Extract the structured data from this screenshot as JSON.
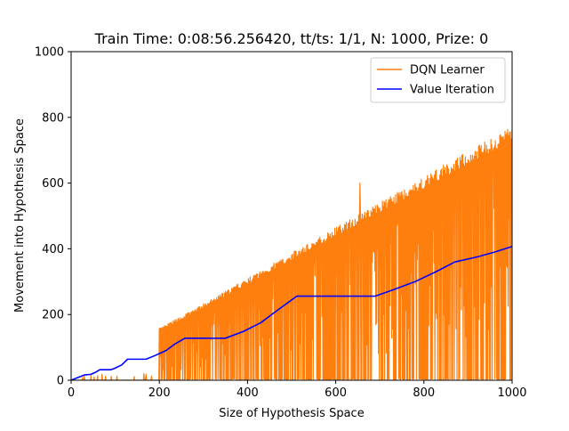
{
  "chart_data": {
    "type": "line",
    "title": "Train Time: 0:08:56.256420, tt/ts: 1/1, N: 1000, Prize: 0",
    "xlabel": "Size of Hypothesis Space",
    "ylabel": "Movement into Hypothesis Space",
    "xlim": [
      0,
      1000
    ],
    "ylim": [
      0,
      1000
    ],
    "xticks": [
      0,
      200,
      400,
      600,
      800,
      1000
    ],
    "yticks": [
      0,
      200,
      400,
      600,
      800,
      1000
    ],
    "grid": false,
    "legend_position": "top-right",
    "series": [
      {
        "name": "DQN Learner",
        "color": "#ff7f0e",
        "description_of_shape": "oscillating between ~0 and an upper envelope of about 0.77*x, with a sparse band between x=0 and 200",
        "upper_envelope": [
          [
            0,
            0
          ],
          [
            200,
            158
          ],
          [
            300,
            232
          ],
          [
            400,
            310
          ],
          [
            500,
            388
          ],
          [
            600,
            465
          ],
          [
            700,
            542
          ],
          [
            800,
            620
          ],
          [
            900,
            697
          ],
          [
            1000,
            775
          ]
        ],
        "spikes": [
          [
            30,
            12
          ],
          [
            45,
            14
          ],
          [
            60,
            14
          ],
          [
            70,
            18
          ],
          [
            165,
            20
          ],
          [
            170,
            18
          ],
          [
            655,
            600
          ]
        ]
      },
      {
        "name": "Value Iteration",
        "color": "#0000ff",
        "x": [
          0,
          15,
          30,
          45,
          55,
          65,
          90,
          100,
          115,
          128,
          150,
          170,
          190,
          215,
          235,
          258,
          300,
          350,
          390,
          430,
          470,
          512,
          600,
          690,
          730,
          780,
          830,
          870,
          920,
          960,
          1000
        ],
        "y": [
          0,
          8,
          16,
          18,
          24,
          32,
          32,
          37,
          47,
          64,
          64,
          64,
          75,
          90,
          110,
          128,
          128,
          128,
          148,
          175,
          215,
          256,
          256,
          256,
          275,
          300,
          332,
          360,
          375,
          390,
          407
        ]
      }
    ]
  }
}
